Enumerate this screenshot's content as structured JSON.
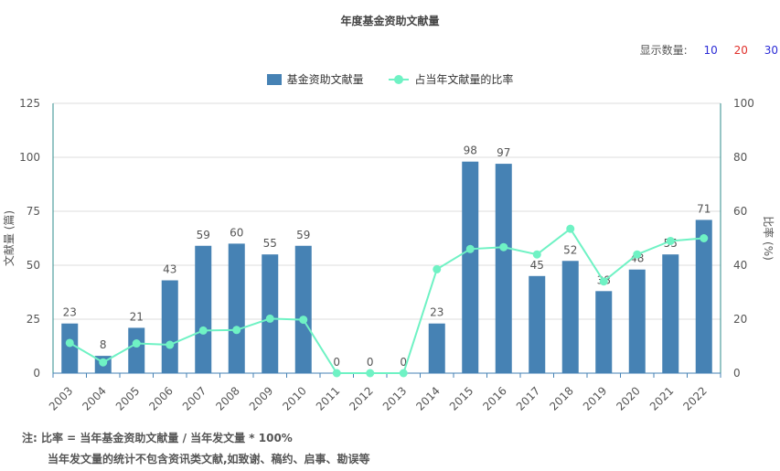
{
  "title": "年度基金资助文献量",
  "display_count": {
    "label": "显示数量:",
    "options": [
      {
        "label": "10",
        "color": "#2b2bd6"
      },
      {
        "label": "20",
        "color": "#e0302b"
      },
      {
        "label": "30",
        "color": "#2b2bd6"
      }
    ]
  },
  "legend": {
    "bar_label": "基金资助文献量",
    "line_label": "占当年文献量的比率"
  },
  "notes": {
    "line1": "注:  比率 = 当年基金资助文献量 / 当年发文量 * 100%",
    "line2": "当年发文量的统计不包含资讯类文献,如致谢、稿约、启事、勘误等"
  },
  "chart_data": {
    "type": "bar+line",
    "categories": [
      "2003",
      "2004",
      "2005",
      "2006",
      "2007",
      "2008",
      "2009",
      "2010",
      "2011",
      "2012",
      "2013",
      "2014",
      "2015",
      "2016",
      "2017",
      "2018",
      "2019",
      "2020",
      "2021",
      "2022"
    ],
    "series": [
      {
        "name": "基金资助文献量",
        "type": "bar",
        "axis": "left",
        "values": [
          23,
          8,
          21,
          43,
          59,
          60,
          55,
          59,
          0,
          0,
          0,
          23,
          98,
          97,
          45,
          52,
          38,
          48,
          55,
          71
        ]
      },
      {
        "name": "占当年文献量的比率",
        "type": "line",
        "axis": "right",
        "values": [
          11.2,
          4,
          11,
          10.5,
          15.8,
          16,
          20.2,
          19.8,
          0,
          0,
          0,
          38.5,
          46,
          46.7,
          44,
          53.5,
          34,
          44,
          49,
          50
        ]
      }
    ],
    "ylabel_left": "文献量 (篇)",
    "ylabel_right": "比率 (%)",
    "ylim_left": [
      0,
      125
    ],
    "ylim_right": [
      0,
      100
    ],
    "yticks_left": [
      0,
      25,
      50,
      75,
      100,
      125
    ],
    "yticks_right": [
      0,
      20,
      40,
      60,
      80,
      100
    ],
    "bar_color": "#4682b4",
    "line_color": "#6ff2c4",
    "grid": true,
    "legend_position": "top-center"
  }
}
